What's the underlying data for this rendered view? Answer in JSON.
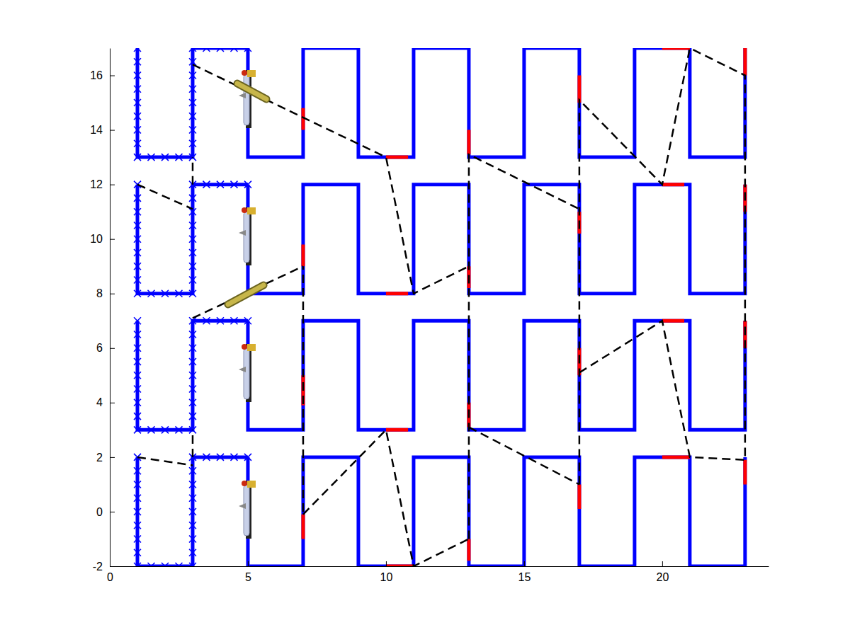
{
  "chart_data": {
    "type": "line",
    "xlim": [
      0,
      23.85
    ],
    "ylim": [
      -2,
      17
    ],
    "xticks": [
      0,
      5,
      10,
      15,
      20
    ],
    "yticks": [
      -2,
      0,
      2,
      4,
      6,
      8,
      10,
      12,
      14,
      16
    ],
    "grid": false,
    "series": [
      {
        "color": "#0000ff",
        "line_style": "solid",
        "marker": "x",
        "x": [
          1,
          1,
          1,
          1,
          1,
          1,
          1,
          1,
          1,
          1.5,
          2,
          2.5,
          3,
          3,
          3,
          3,
          3,
          3,
          3,
          3,
          3,
          3.5,
          4,
          4.5,
          5
        ],
        "values": [
          2,
          1.5,
          1,
          0.5,
          0,
          -0.5,
          -1,
          -1.5,
          -2,
          -2,
          -2,
          -2,
          -2,
          -1.5,
          -1,
          -0.5,
          0,
          0.5,
          1,
          1.5,
          2,
          2,
          2,
          2,
          2
        ]
      },
      {
        "color": "#0000ff",
        "line_style": "solid",
        "marker": "x",
        "x": [
          1,
          1,
          1,
          1,
          1,
          1,
          1,
          1,
          1,
          1.5,
          2,
          2.5,
          3,
          3,
          3,
          3,
          3,
          3,
          3,
          3,
          3,
          3.5,
          4,
          4.5,
          5
        ],
        "values": [
          7,
          6.5,
          6,
          5.5,
          5,
          4.5,
          4,
          3.5,
          3,
          3,
          3,
          3,
          3,
          3.5,
          4,
          4.5,
          5,
          5.5,
          6,
          6.5,
          7,
          7,
          7,
          7,
          7
        ]
      },
      {
        "color": "#0000ff",
        "line_style": "solid",
        "marker": "x",
        "x": [
          1,
          1,
          1,
          1,
          1,
          1,
          1,
          1,
          1,
          1.5,
          2,
          2.5,
          3,
          3,
          3,
          3,
          3,
          3,
          3,
          3,
          3,
          3.5,
          4,
          4.5,
          5
        ],
        "values": [
          12,
          11.5,
          11,
          10.5,
          10,
          9.5,
          9,
          8.5,
          8,
          8,
          8,
          8,
          8,
          8.5,
          9,
          9.5,
          10,
          10.5,
          11,
          11.5,
          12,
          12,
          12,
          12,
          12
        ]
      },
      {
        "color": "#0000ff",
        "line_style": "solid",
        "marker": "x",
        "x": [
          1,
          1,
          1,
          1,
          1,
          1,
          1,
          1,
          1,
          1.5,
          2,
          2.5,
          3,
          3,
          3,
          3,
          3,
          3,
          3,
          3,
          3,
          3.5,
          4,
          4.5,
          5
        ],
        "values": [
          17,
          16.5,
          16,
          15.5,
          15,
          14.5,
          14,
          13.5,
          13,
          13,
          13,
          13,
          13,
          13.5,
          14,
          14.5,
          15,
          15.5,
          16,
          16.5,
          17,
          17,
          17,
          17,
          17
        ]
      },
      {
        "color": "#0000ff",
        "line_style": "solid",
        "marker": "none",
        "x": [
          5,
          5,
          7,
          7,
          9,
          9,
          11,
          11,
          13,
          13,
          15,
          15,
          17,
          17,
          19,
          19,
          21,
          21,
          23,
          23
        ],
        "values": [
          2,
          -2,
          -2,
          2,
          2,
          -2,
          -2,
          2,
          2,
          -2,
          -2,
          2,
          2,
          -2,
          -2,
          2,
          2,
          -2,
          -2,
          2
        ]
      },
      {
        "color": "#0000ff",
        "line_style": "solid",
        "marker": "none",
        "x": [
          5,
          5,
          7,
          7,
          9,
          9,
          11,
          11,
          13,
          13,
          15,
          15,
          17,
          17,
          19,
          19,
          21,
          21,
          23,
          23
        ],
        "values": [
          7,
          3,
          3,
          7,
          7,
          3,
          3,
          7,
          7,
          3,
          3,
          7,
          7,
          3,
          3,
          7,
          7,
          3,
          3,
          7
        ]
      },
      {
        "color": "#0000ff",
        "line_style": "solid",
        "marker": "none",
        "x": [
          5,
          5,
          7,
          7,
          9,
          9,
          11,
          11,
          13,
          13,
          15,
          15,
          17,
          17,
          19,
          19,
          21,
          21,
          23,
          23
        ],
        "values": [
          12,
          8,
          8,
          12,
          12,
          8,
          8,
          12,
          12,
          8,
          8,
          12,
          12,
          8,
          8,
          12,
          12,
          8,
          8,
          12
        ]
      },
      {
        "color": "#0000ff",
        "line_style": "solid",
        "marker": "none",
        "x": [
          5,
          5,
          7,
          7,
          9,
          9,
          11,
          11,
          13,
          13,
          15,
          15,
          17,
          17,
          19,
          19,
          21,
          21,
          23,
          23
        ],
        "values": [
          17,
          13,
          13,
          17,
          17,
          13,
          13,
          17,
          17,
          13,
          13,
          17,
          17,
          13,
          13,
          17,
          17,
          13,
          13,
          17
        ]
      },
      {
        "color": "#ff0000",
        "line_style": "solid",
        "marker": "none",
        "x": [
          7,
          7,
          null,
          10,
          11,
          null,
          13,
          13,
          null,
          17,
          17,
          null,
          20,
          21,
          null,
          23,
          23,
          null,
          7,
          7,
          null,
          10,
          10.8,
          null,
          13,
          13,
          null,
          17,
          17,
          null,
          20,
          20.8,
          null,
          23,
          23,
          null,
          7,
          7,
          null,
          10,
          10.8,
          null,
          13,
          13,
          null,
          17,
          17,
          null,
          20,
          20.8,
          null,
          23,
          23,
          null,
          7,
          7,
          null,
          10,
          10.8,
          null,
          13,
          13,
          null,
          17,
          17,
          null,
          20,
          21,
          null,
          23,
          23
        ],
        "values": [
          -1,
          -0.1,
          null,
          -2,
          -2,
          null,
          -1.8,
          -1,
          null,
          0.1,
          1,
          null,
          2,
          2,
          null,
          1,
          1.9,
          null,
          3.9,
          5,
          null,
          3,
          3,
          null,
          3.1,
          4,
          null,
          5,
          6,
          null,
          7,
          7,
          null,
          6,
          7,
          null,
          9,
          9.8,
          null,
          8,
          8,
          null,
          8.2,
          9,
          null,
          10.2,
          11,
          null,
          12,
          12,
          null,
          11,
          12,
          null,
          14,
          14.8,
          null,
          13,
          13,
          null,
          13.1,
          14,
          null,
          15,
          16,
          null,
          17,
          17,
          null,
          16,
          17
        ]
      },
      {
        "color": "#000000",
        "line_style": "dashed",
        "marker": "none",
        "x": [
          1,
          3,
          null,
          3,
          3,
          null,
          3,
          7,
          null,
          1,
          3,
          null,
          3,
          3,
          null,
          3,
          10,
          11,
          13,
          null,
          7,
          10,
          11,
          13,
          null,
          7,
          7,
          null,
          13,
          13,
          17,
          null,
          13,
          17,
          null,
          17,
          17,
          20,
          21,
          23,
          23,
          null,
          17,
          20,
          21,
          23
        ],
        "values": [
          2,
          1.7,
          null,
          2,
          3,
          null,
          7.1,
          9,
          null,
          12,
          11.1,
          null,
          12,
          13,
          null,
          16.4,
          13,
          8,
          9,
          null,
          -0.1,
          3,
          -2,
          -1,
          null,
          0,
          9,
          null,
          -1,
          13.1,
          11.1,
          null,
          3.1,
          1,
          null,
          1,
          15.1,
          12,
          17,
          16,
          1.9,
          null,
          5.1,
          7,
          2,
          1.9
        ]
      }
    ]
  }
}
